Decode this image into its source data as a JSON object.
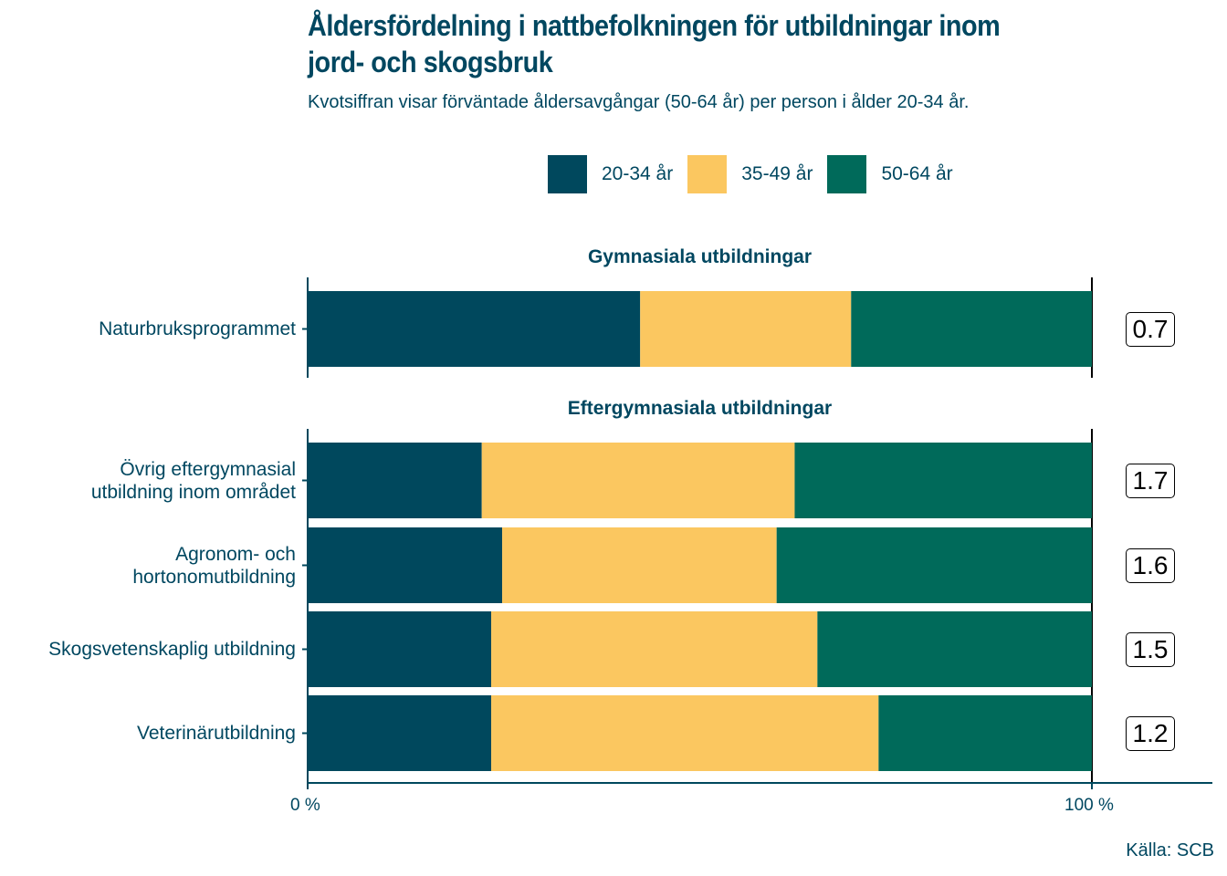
{
  "chart_data": {
    "type": "bar",
    "orientation": "horizontal",
    "stacked": true,
    "title": "Åldersfördelning i nattbefolkningen för utbildningar inom jord- och skogsbruk",
    "title_lines": [
      "Åldersfördelning i nattbefolkningen för utbildningar inom",
      "jord- och skogsbruk"
    ],
    "subtitle": "Kvotsiffran visar förväntade åldersavgångar (50-64 år) per person i ålder 20-34 år.",
    "xlabel": "",
    "ylabel": "",
    "xlim": [
      0,
      100
    ],
    "x_ticks": [
      "0 %",
      "100 %"
    ],
    "legend_position": "top",
    "caption": "Källa: SCB",
    "series": [
      {
        "name": "20-34 år",
        "color": "#00485d"
      },
      {
        "name": "35-49 år",
        "color": "#fbc760"
      },
      {
        "name": "50-64 år",
        "color": "#006a5a"
      }
    ],
    "facets": [
      {
        "title": "Gymnasiala utbildningar",
        "rows": [
          {
            "label": "Naturbruksprogrammet",
            "values": [
              42.4,
              26.9,
              30.7
            ],
            "ratio": "0.7"
          }
        ]
      },
      {
        "title": "Eftergymnasiala utbildningar",
        "rows": [
          {
            "label": "Övrig eftergymnasial\nutbildning inom området",
            "values": [
              22.2,
              39.9,
              37.9
            ],
            "ratio": "1.7"
          },
          {
            "label": "Agronom- och\nhortonomutbildning",
            "values": [
              24.8,
              35.0,
              40.2
            ],
            "ratio": "1.6"
          },
          {
            "label": "Skogsvetenskaplig utbildning",
            "values": [
              23.4,
              41.6,
              35.0
            ],
            "ratio": "1.5"
          },
          {
            "label": "Veterinärutbildning",
            "values": [
              23.4,
              49.4,
              27.2
            ],
            "ratio": "1.2"
          }
        ]
      }
    ]
  }
}
